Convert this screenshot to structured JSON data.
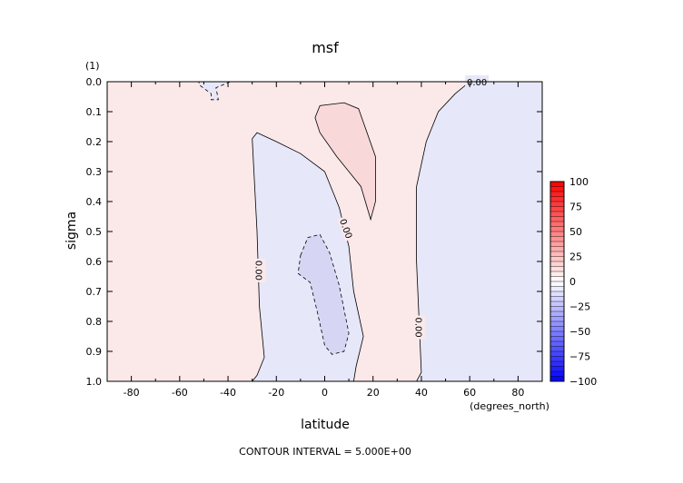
{
  "chart_data": {
    "type": "contour",
    "title": "msf",
    "units": "(1)",
    "xlabel": "latitude",
    "x_units": "(degrees_north)",
    "ylabel": "sigma",
    "footer": "CONTOUR INTERVAL = 5.000E+00",
    "xlim": [
      -90,
      90
    ],
    "ylim": [
      1.0,
      0.0
    ],
    "x_ticks": [
      -80,
      -60,
      -40,
      -20,
      0,
      20,
      40,
      60,
      80
    ],
    "x_tick_labels": [
      "-80",
      "-60",
      "-40",
      "-20",
      "0",
      "20",
      "40",
      "60",
      "80"
    ],
    "y_ticks": [
      0.0,
      0.1,
      0.2,
      0.3,
      0.4,
      0.5,
      0.6,
      0.7,
      0.8,
      0.9,
      1.0
    ],
    "y_tick_labels": [
      "0.0",
      "0.1",
      "0.2",
      "0.3",
      "0.4",
      "0.5",
      "0.6",
      "0.7",
      "0.8",
      "0.9",
      "1.0"
    ],
    "contour_interval": 5.0,
    "colorbar": {
      "min": -100,
      "max": 100,
      "ticks": [
        100,
        75,
        50,
        25,
        0,
        -25,
        -50,
        -75,
        -100
      ],
      "tick_labels": [
        "100",
        "75",
        "50",
        "25",
        "0",
        "−25",
        "−50",
        "−75",
        "−100"
      ],
      "low_color": "#0000ff",
      "high_color": "#ff0000"
    },
    "contour_labels": [
      {
        "text": "0.00",
        "x": 63,
        "y": 0.0
      },
      {
        "text": "0.00",
        "x": 9,
        "y": 0.49
      },
      {
        "text": "0.00",
        "x": -27,
        "y": 0.63
      },
      {
        "text": "0.00",
        "x": 39,
        "y": 0.82
      }
    ],
    "regions": [
      {
        "name": "background",
        "sign": "positive",
        "level": 0,
        "fill": "#fbe9ea"
      },
      {
        "name": "upper-left-cell",
        "sign": "negative",
        "level": -5,
        "fill": "#e6e7f8",
        "points": [
          [
            -52,
            0.0
          ],
          [
            -39,
            0.0
          ],
          [
            -45,
            0.02
          ],
          [
            -44,
            0.06
          ],
          [
            -47,
            0.06
          ],
          [
            -47,
            0.04
          ],
          [
            -52,
            0.01
          ]
        ]
      },
      {
        "name": "left-cell",
        "sign": "negative",
        "level": 0,
        "fill": "#e6e7f8",
        "points": [
          [
            -30,
            0.19
          ],
          [
            -28,
            0.17
          ],
          [
            -20,
            0.2
          ],
          [
            -10,
            0.24
          ],
          [
            0,
            0.3
          ],
          [
            6,
            0.42
          ],
          [
            10,
            0.55
          ],
          [
            12,
            0.7
          ],
          [
            16,
            0.85
          ],
          [
            13,
            0.95
          ],
          [
            12,
            1.0
          ],
          [
            -30,
            1.0
          ],
          [
            -28,
            0.98
          ],
          [
            -25,
            0.92
          ],
          [
            -27,
            0.75
          ],
          [
            -28,
            0.5
          ]
        ]
      },
      {
        "name": "left-inner-cell",
        "sign": "negative",
        "level": -5,
        "fill": "#d6d6f4",
        "points": [
          [
            -10,
            0.58
          ],
          [
            -7,
            0.52
          ],
          [
            -2,
            0.51
          ],
          [
            2,
            0.57
          ],
          [
            6,
            0.68
          ],
          [
            10,
            0.84
          ],
          [
            8,
            0.9
          ],
          [
            3,
            0.91
          ],
          [
            0,
            0.88
          ],
          [
            -3,
            0.77
          ],
          [
            -6,
            0.67
          ],
          [
            -11,
            0.64
          ]
        ]
      },
      {
        "name": "upper-right-cell",
        "sign": "positive",
        "level": 5,
        "fill": "#f8d8d8",
        "points": [
          [
            -4,
            0.12
          ],
          [
            -2,
            0.08
          ],
          [
            8,
            0.07
          ],
          [
            14,
            0.09
          ],
          [
            21,
            0.25
          ],
          [
            21,
            0.4
          ],
          [
            19,
            0.46
          ],
          [
            15,
            0.35
          ],
          [
            5,
            0.25
          ],
          [
            -2,
            0.17
          ]
        ]
      },
      {
        "name": "right-cell",
        "sign": "negative",
        "level": 0,
        "fill": "#e6e7f8",
        "points": [
          [
            60,
            0.0
          ],
          [
            90,
            0.0
          ],
          [
            90,
            1.0
          ],
          [
            38,
            1.0
          ],
          [
            40,
            0.97
          ],
          [
            38,
            0.6
          ],
          [
            38,
            0.35
          ],
          [
            42,
            0.2
          ],
          [
            47,
            0.1
          ],
          [
            54,
            0.04
          ]
        ]
      }
    ]
  }
}
